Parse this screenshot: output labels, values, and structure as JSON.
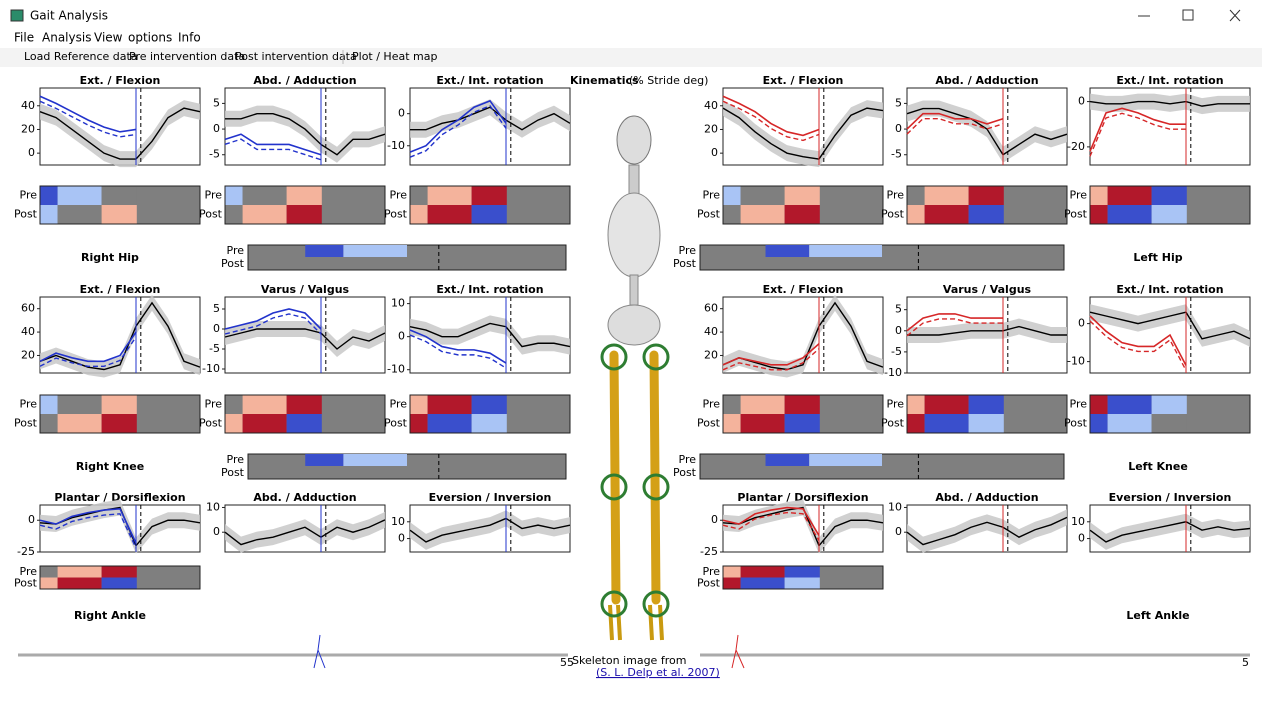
{
  "window": {
    "title": "Gait Analysis"
  },
  "menu": [
    "File",
    "Analysis",
    "View",
    "options",
    "Info"
  ],
  "toolbar": [
    "Load Reference data",
    "Pre intervention data",
    "Post intervention data",
    "Plot / Heat map"
  ],
  "header": {
    "prefix": "Kinematics",
    "unit": "(% Stride deg)"
  },
  "heat_labels": [
    "Pre",
    "Post"
  ],
  "stride_x": [
    0,
    10,
    20,
    30,
    40,
    50,
    60,
    70,
    80,
    90,
    100
  ],
  "sides": [
    {
      "color": "#2233cc",
      "joints": [
        {
          "label": "Right Hip",
          "plots": [
            {
              "title": "Ext. / Flexion",
              "ylim": [
                -10,
                55
              ],
              "yticks": [
                0,
                20,
                40
              ],
              "ref": [
                35,
                30,
                20,
                10,
                0,
                -5,
                -5,
                10,
                30,
                38,
                35
              ],
              "patient": [
                48,
                42,
                35,
                28,
                22,
                18,
                20,
                null,
                null,
                null,
                null
              ]
            },
            {
              "title": "Abd. / Adduction",
              "ylim": [
                -7,
                8
              ],
              "yticks": [
                -5,
                0,
                5
              ],
              "ref": [
                2,
                2,
                3,
                3,
                2,
                0,
                -3,
                -5,
                -2,
                -2,
                -1
              ],
              "patient": [
                -2,
                -1,
                -3,
                -3,
                -3,
                -4,
                -5,
                null,
                null,
                null,
                null
              ]
            },
            {
              "title": "Ext./ Int. rotation",
              "ylim": [
                -16,
                8
              ],
              "yticks": [
                -10,
                0
              ],
              "ref": [
                -5,
                -5,
                -3,
                -2,
                0,
                2,
                -2,
                -5,
                -2,
                0,
                -3
              ],
              "patient": [
                -12,
                -10,
                -5,
                -2,
                2,
                4,
                -3,
                null,
                null,
                null,
                null
              ]
            }
          ]
        },
        {
          "label": "Right Knee",
          "plots": [
            {
              "title": "Ext. / Flexion",
              "ylim": [
                5,
                70
              ],
              "yticks": [
                20,
                40,
                60
              ],
              "ref": [
                15,
                20,
                15,
                10,
                8,
                12,
                45,
                65,
                45,
                15,
                10
              ],
              "patient": [
                15,
                22,
                18,
                15,
                15,
                20,
                40,
                null,
                null,
                null,
                null
              ]
            },
            {
              "title": "Varus / Valgus",
              "ylim": [
                -11,
                8
              ],
              "yticks": [
                -10,
                -5,
                0,
                5
              ],
              "ref": [
                -2,
                -1,
                0,
                0,
                0,
                0,
                -1,
                -5,
                -2,
                -3,
                -1
              ],
              "patient": [
                0,
                1,
                2,
                4,
                5,
                4,
                0,
                null,
                null,
                null,
                null
              ]
            },
            {
              "title": "Ext./ Int. rotation",
              "ylim": [
                -11,
                12
              ],
              "yticks": [
                -10,
                0,
                10
              ],
              "ref": [
                3,
                2,
                0,
                0,
                2,
                4,
                3,
                -3,
                -2,
                -2,
                -3
              ],
              "patient": [
                2,
                0,
                -3,
                -4,
                -4,
                -5,
                -8,
                null,
                null,
                null,
                null
              ]
            }
          ]
        },
        {
          "label": "Right Ankle",
          "plots": [
            {
              "title": "Plantar / Dorsiflexion",
              "ylim": [
                -25,
                12
              ],
              "yticks": [
                -25,
                0
              ],
              "ref": [
                -2,
                -3,
                2,
                5,
                8,
                10,
                -20,
                -5,
                0,
                0,
                -2
              ],
              "patient": [
                0,
                -3,
                3,
                6,
                8,
                9,
                -18,
                null,
                null,
                null,
                null
              ]
            },
            {
              "title": "Abd. / Adduction",
              "ylim": [
                -8,
                11
              ],
              "yticks": [
                0,
                10
              ],
              "ref": [
                0,
                -5,
                -3,
                -2,
                0,
                2,
                -2,
                2,
                0,
                2,
                5
              ]
            },
            {
              "title": "Eversion / Inversion",
              "ylim": [
                -8,
                20
              ],
              "yticks": [
                0,
                10
              ],
              "ref": [
                5,
                -2,
                2,
                4,
                6,
                8,
                12,
                6,
                8,
                6,
                8
              ]
            }
          ]
        }
      ]
    },
    {
      "color": "#d62728",
      "joints": [
        {
          "label": "Left Hip",
          "plots": [
            {
              "title": "Ext. / Flexion",
              "ylim": [
                -10,
                55
              ],
              "yticks": [
                0,
                20,
                40
              ],
              "ref": [
                38,
                30,
                18,
                8,
                0,
                -3,
                -5,
                15,
                32,
                38,
                36
              ],
              "patient": [
                48,
                42,
                35,
                25,
                18,
                15,
                20,
                null,
                null,
                null,
                null
              ]
            },
            {
              "title": "Abd. / Adduction",
              "ylim": [
                -7,
                8
              ],
              "yticks": [
                -5,
                0,
                5
              ],
              "ref": [
                3,
                4,
                4,
                3,
                2,
                0,
                -5,
                -3,
                -1,
                -2,
                -1
              ],
              "patient": [
                0,
                3,
                3,
                2,
                2,
                1,
                2,
                null,
                null,
                null,
                null
              ]
            },
            {
              "title": "Ext./ Int. rotation",
              "ylim": [
                -28,
                6
              ],
              "yticks": [
                -20,
                0
              ],
              "ref": [
                0,
                -1,
                -1,
                0,
                0,
                -1,
                0,
                -2,
                -1,
                -1,
                -1
              ],
              "patient": [
                -22,
                -5,
                -3,
                -5,
                -8,
                -10,
                -10,
                null,
                null,
                null,
                null
              ]
            }
          ]
        },
        {
          "label": "Left Knee",
          "plots": [
            {
              "title": "Ext. / Flexion",
              "ylim": [
                5,
                70
              ],
              "yticks": [
                20,
                40,
                60
              ],
              "ref": [
                12,
                18,
                14,
                10,
                8,
                12,
                45,
                65,
                45,
                15,
                10
              ],
              "patient": [
                12,
                18,
                15,
                12,
                12,
                18,
                30,
                null,
                null,
                null,
                null
              ]
            },
            {
              "title": "Varus / Valgus",
              "ylim": [
                -10,
                8
              ],
              "yticks": [
                -10,
                -5,
                0,
                5
              ],
              "ref": [
                -1,
                -1,
                -1,
                -0.5,
                0,
                0,
                0,
                1,
                0,
                -1,
                -1
              ],
              "patient": [
                0,
                3,
                4,
                4,
                3,
                3,
                3,
                null,
                null,
                null,
                null
              ]
            },
            {
              "title": "Ext./ Int. rotation",
              "ylim": [
                -13,
                7
              ],
              "yticks": [
                -10,
                0
              ],
              "ref": [
                3,
                2,
                1,
                0,
                1,
                2,
                3,
                -4,
                -3,
                -2,
                -4
              ],
              "patient": [
                2,
                -2,
                -5,
                -6,
                -6,
                -3,
                -11,
                null,
                null,
                null,
                null
              ]
            }
          ]
        },
        {
          "label": "Left Ankle",
          "plots": [
            {
              "title": "Plantar / Dorsiflexion",
              "ylim": [
                -25,
                12
              ],
              "yticks": [
                -25,
                0
              ],
              "ref": [
                -2,
                -3,
                2,
                5,
                8,
                10,
                -20,
                -5,
                0,
                0,
                -2
              ],
              "patient": [
                0,
                -3,
                5,
                8,
                10,
                9,
                -12,
                null,
                null,
                null,
                null
              ]
            },
            {
              "title": "Abd. / Adduction",
              "ylim": [
                -8,
                11
              ],
              "yticks": [
                0,
                10
              ],
              "ref": [
                0,
                -5,
                -3,
                -1,
                2,
                4,
                2,
                -2,
                1,
                3,
                6
              ]
            },
            {
              "title": "Eversion / Inversion",
              "ylim": [
                -8,
                20
              ],
              "yticks": [
                0,
                10
              ],
              "ref": [
                5,
                -2,
                2,
                4,
                6,
                8,
                10,
                5,
                7,
                5,
                6
              ]
            }
          ]
        }
      ]
    }
  ],
  "footer": {
    "frame_left": "55",
    "credit": "Skeleton image from",
    "link": "(S. L. Delp et al. 2007)",
    "frame_right": "5"
  }
}
